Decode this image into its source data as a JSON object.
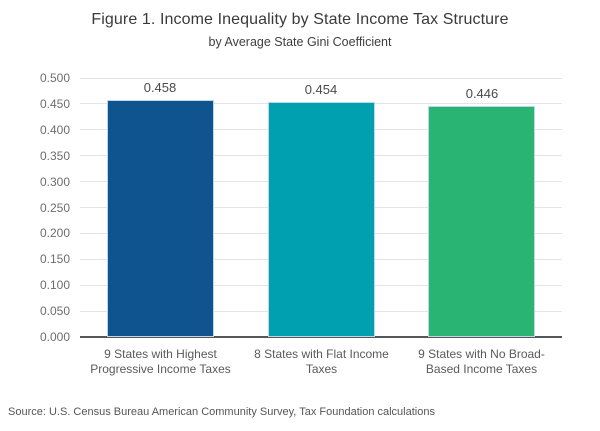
{
  "source_note": "Source: U.S. Census Bureau American Community Survey, Tax Foundation calculations",
  "colors": {
    "bar_progressive": "#10548f",
    "bar_flat": "#00a0b0",
    "bar_no_income_tax": "#2ab474",
    "bar_border": "#bdd7ee",
    "gridline": "#e4e4e4",
    "axis_line": "#565656"
  },
  "chart_data": {
    "type": "bar",
    "title": "Figure 1. Income Inequality by State Income Tax Structure",
    "subtitle": "by Average State Gini Coefficient",
    "categories": [
      "9 States with Highest\nProgressive Income Taxes",
      "8 States with Flat Income\nTaxes",
      "9 States with No Broad-\nBased Income Taxes"
    ],
    "values": [
      0.458,
      0.454,
      0.446
    ],
    "value_labels": [
      "0.458",
      "0.454",
      "0.446"
    ],
    "bar_colors": [
      "#10548f",
      "#00a0b0",
      "#2ab474"
    ],
    "xlabel": "",
    "ylabel": "",
    "ylim": [
      0,
      0.5
    ],
    "yticks": [
      "0.000",
      "0.050",
      "0.100",
      "0.150",
      "0.200",
      "0.250",
      "0.300",
      "0.350",
      "0.400",
      "0.450",
      "0.500"
    ],
    "grid": true,
    "legend_position": "none"
  }
}
